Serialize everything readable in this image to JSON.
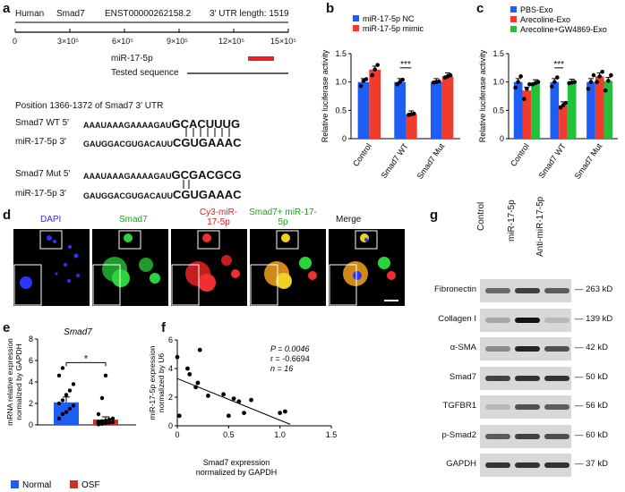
{
  "labels": {
    "a": "a",
    "b": "b",
    "c": "c",
    "d": "d",
    "e": "e",
    "f": "f",
    "g": "g"
  },
  "panel_a": {
    "header": [
      "Human",
      "Smad7",
      "ENST00000262158.2",
      "3′ UTR length: 1519"
    ],
    "ticks": [
      "0",
      "3×10⁵",
      "6×10⁵",
      "9×10⁵",
      "12×10⁵",
      "15×10⁵"
    ],
    "mir_label": "miR-17-5p",
    "tested_label": "Tested sequence",
    "position_title": "Position 1366-1372 of Smad7 3′ UTR",
    "wt_label": "Smad7 WT 5′",
    "wt_seq_a": "AAAUAAAGAAAAGAU",
    "wt_seq_b": "GCACUUUG",
    "mir_label_3": "miR-17-5p 3′",
    "mir_seq_a": "GAUGGACGUGACAUU",
    "mir_seq_b": "CGUGAAAC",
    "mut_label": "Smad7 Mut 5′",
    "mut_seq_a": "AAAUAAAGAAAAGAU",
    "mut_seq_b": "GCGACGCG",
    "mir_label_3b": "miR-17-5p 3′",
    "mir_seq_a2": "GAUGGACGUGACAUU",
    "mir_seq_b2": "CGUGAAAC"
  },
  "chart_data": [
    {
      "id": "b",
      "type": "bar",
      "ylabel": "Relative luciferase activity",
      "ylim": [
        0,
        1.5
      ],
      "yticks": [
        "0",
        "0.5",
        "1.0",
        "1.5"
      ],
      "categories": [
        "Control",
        "Smad7 WT",
        "Smad7 Mut"
      ],
      "series": [
        {
          "name": "miR-17-5p NC",
          "color": "#1f5ef5",
          "values": [
            1.0,
            1.0,
            1.0
          ],
          "points": [
            [
              0.93,
              1.02,
              1.05
            ],
            [
              0.96,
              1.0,
              1.04
            ],
            [
              0.99,
              1.0,
              1.01
            ]
          ]
        },
        {
          "name": "miR-17-5p mimic",
          "color": "#f03c2d",
          "values": [
            1.22,
            0.43,
            1.1
          ],
          "points": [
            [
              1.12,
              1.22,
              1.3
            ],
            [
              0.42,
              0.43,
              0.44
            ],
            [
              1.08,
              1.1,
              1.12
            ]
          ]
        }
      ],
      "significance": "***",
      "legend": "top"
    },
    {
      "id": "c",
      "type": "bar",
      "ylabel": "Relative luciferase activity",
      "ylim": [
        0,
        1.5
      ],
      "yticks": [
        "0",
        "0.5",
        "1.0",
        "1.5"
      ],
      "categories": [
        "Control",
        "Smad7 WT",
        "Smad7 Mut"
      ],
      "series": [
        {
          "name": "PBS-Exo",
          "color": "#1f5ef5",
          "values": [
            1.0,
            1.0,
            1.0
          ],
          "points": [
            [
              0.9,
              1.0,
              1.1
            ],
            [
              0.92,
              1.0,
              1.08
            ],
            [
              0.88,
              1.0,
              1.12
            ]
          ]
        },
        {
          "name": "Arecoline-Exo",
          "color": "#f03c2d",
          "values": [
            0.85,
            0.59,
            1.1
          ],
          "points": [
            [
              0.7,
              0.88,
              0.96
            ],
            [
              0.55,
              0.59,
              0.63
            ],
            [
              1.0,
              1.1,
              1.18
            ]
          ]
        },
        {
          "name": "Arecoline+GW4869-Exo",
          "color": "#22c13a",
          "values": [
            0.98,
            0.99,
            1.02
          ],
          "points": [
            [
              0.96,
              0.98,
              1.0
            ],
            [
              0.98,
              0.99,
              1.0
            ],
            [
              0.85,
              1.02,
              1.12
            ]
          ]
        }
      ],
      "significance": "***",
      "legend": "top"
    },
    {
      "id": "e",
      "type": "bar",
      "title": "Smad7",
      "ylabel": "mRNA relative expression normalized by GAPDH",
      "ylim": [
        0,
        8
      ],
      "yticks": [
        "0",
        "2",
        "4",
        "6",
        "8"
      ],
      "categories": [
        "Normal",
        "OSF"
      ],
      "series": [
        {
          "name": "",
          "values": [
            2.1,
            0.5
          ]
        }
      ],
      "colors": [
        "#1f5ef5",
        "#c8322a"
      ],
      "points": [
        [
          0.6,
          1.0,
          1.2,
          1.5,
          1.8,
          2.0,
          2.3,
          2.8,
          3.2,
          3.8,
          4.6,
          5.3
        ],
        [
          0.05,
          0.1,
          0.15,
          0.2,
          0.25,
          0.3,
          0.35,
          0.4,
          0.5,
          0.6,
          1.0,
          2.5,
          4.6
        ]
      ],
      "errors": [
        0.5,
        0.25
      ],
      "significance": "*",
      "legend_items": [
        "Normal",
        "OSF"
      ]
    },
    {
      "id": "f",
      "type": "scatter",
      "xlabel": "Smad7 expression normalized by GAPDH",
      "ylabel": "miR-17-5p expression normalized by U6",
      "xlim": [
        0,
        1.5
      ],
      "ylim": [
        0,
        6
      ],
      "xticks": [
        "0",
        "0.5",
        "1.0",
        "1.5"
      ],
      "yticks": [
        "0",
        "2",
        "4",
        "6"
      ],
      "x": [
        0.0,
        0.02,
        0.1,
        0.12,
        0.18,
        0.2,
        0.22,
        0.3,
        0.45,
        0.5,
        0.55,
        0.6,
        0.65,
        0.72,
        1.0,
        1.05
      ],
      "y": [
        4.8,
        0.7,
        4.0,
        3.6,
        2.7,
        3.0,
        5.3,
        2.1,
        2.2,
        0.7,
        1.9,
        1.7,
        0.9,
        1.8,
        0.9,
        1.0
      ],
      "fit": [
        [
          0.0,
          3.3
        ],
        [
          1.1,
          0.1
        ]
      ],
      "stats": [
        "P = 0.0046",
        "r = -0.6694",
        "n = 16"
      ]
    }
  ],
  "panel_d": {
    "titles": [
      "DAPI",
      "Smad7",
      "Cy3-miR-17-5p",
      "Smad7+ miR-17-5p",
      "Merge"
    ]
  },
  "panel_g": {
    "lanes": [
      "Control",
      "miR-17-5p",
      "Anti-miR-17-5p"
    ],
    "rows": [
      {
        "label": "Fibronectin",
        "size": "263 kD"
      },
      {
        "label": "Collagen I",
        "size": "139 kD"
      },
      {
        "label": "α-SMA",
        "size": "42 kD"
      },
      {
        "label": "Smad7",
        "size": "50 kD"
      },
      {
        "label": "TGFBR1",
        "size": "56 kD"
      },
      {
        "label": "p-Smad2",
        "size": "60 kD"
      },
      {
        "label": "GAPDH",
        "size": "37 kD"
      }
    ],
    "band_levels": [
      [
        0.7,
        0.85,
        0.75
      ],
      [
        0.4,
        1.0,
        0.3
      ],
      [
        0.55,
        0.95,
        0.8
      ],
      [
        0.85,
        0.9,
        0.9
      ],
      [
        0.3,
        0.8,
        0.75
      ],
      [
        0.75,
        0.85,
        0.8
      ],
      [
        0.9,
        0.9,
        0.9
      ]
    ]
  }
}
